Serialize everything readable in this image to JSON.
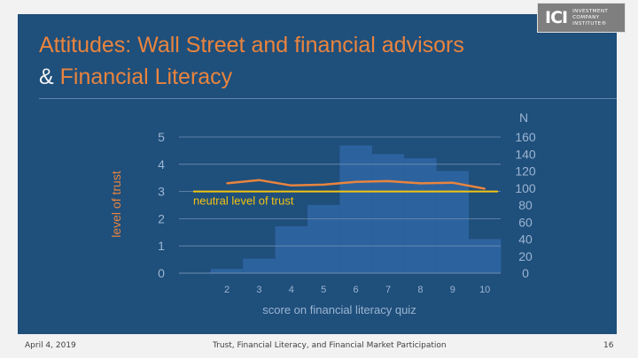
{
  "slide": {
    "title_line1": "Attitudes: Wall Street and financial advisors",
    "title_amp": "&",
    "title_line2_rest": "Financial Literacy",
    "logo": {
      "mark": "ICI",
      "text": "INVESTMENT COMPANY INSTITUTE®"
    }
  },
  "footer": {
    "date": "April 4, 2019",
    "center": "Trust, Financial Literacy, and Financial Market Participation",
    "page": "16"
  },
  "colors": {
    "background": "#1f4f7b",
    "title": "#e9843e",
    "trust_line": "#e9843e",
    "neutral_line": "#f2c413",
    "bars": "#2e65a3",
    "axis_text": "#9bb5d2",
    "grid": "#6f8fb2"
  },
  "chart_data": {
    "type": "bar",
    "x": [
      2,
      3,
      4,
      5,
      6,
      7,
      8,
      9,
      10
    ],
    "xlabel": "score on financial literacy quiz",
    "ylabel": "level of trust",
    "ylim": [
      0,
      5
    ],
    "yticks": [
      0,
      1,
      2,
      3,
      4,
      5
    ],
    "y2label": "N",
    "y2lim": [
      0,
      160
    ],
    "y2ticks": [
      0,
      20,
      40,
      60,
      80,
      100,
      120,
      140,
      160
    ],
    "grid": true,
    "series": [
      {
        "kind": "bar",
        "axis": "right",
        "values": [
          5,
          17,
          55,
          80,
          150,
          140,
          135,
          120,
          40
        ]
      },
      {
        "kind": "line",
        "axis": "left",
        "values": [
          3.3,
          3.42,
          3.22,
          3.25,
          3.35,
          3.38,
          3.3,
          3.32,
          3.1
        ]
      }
    ],
    "reference_line": {
      "y": 3,
      "label": "neutral level of trust"
    }
  }
}
